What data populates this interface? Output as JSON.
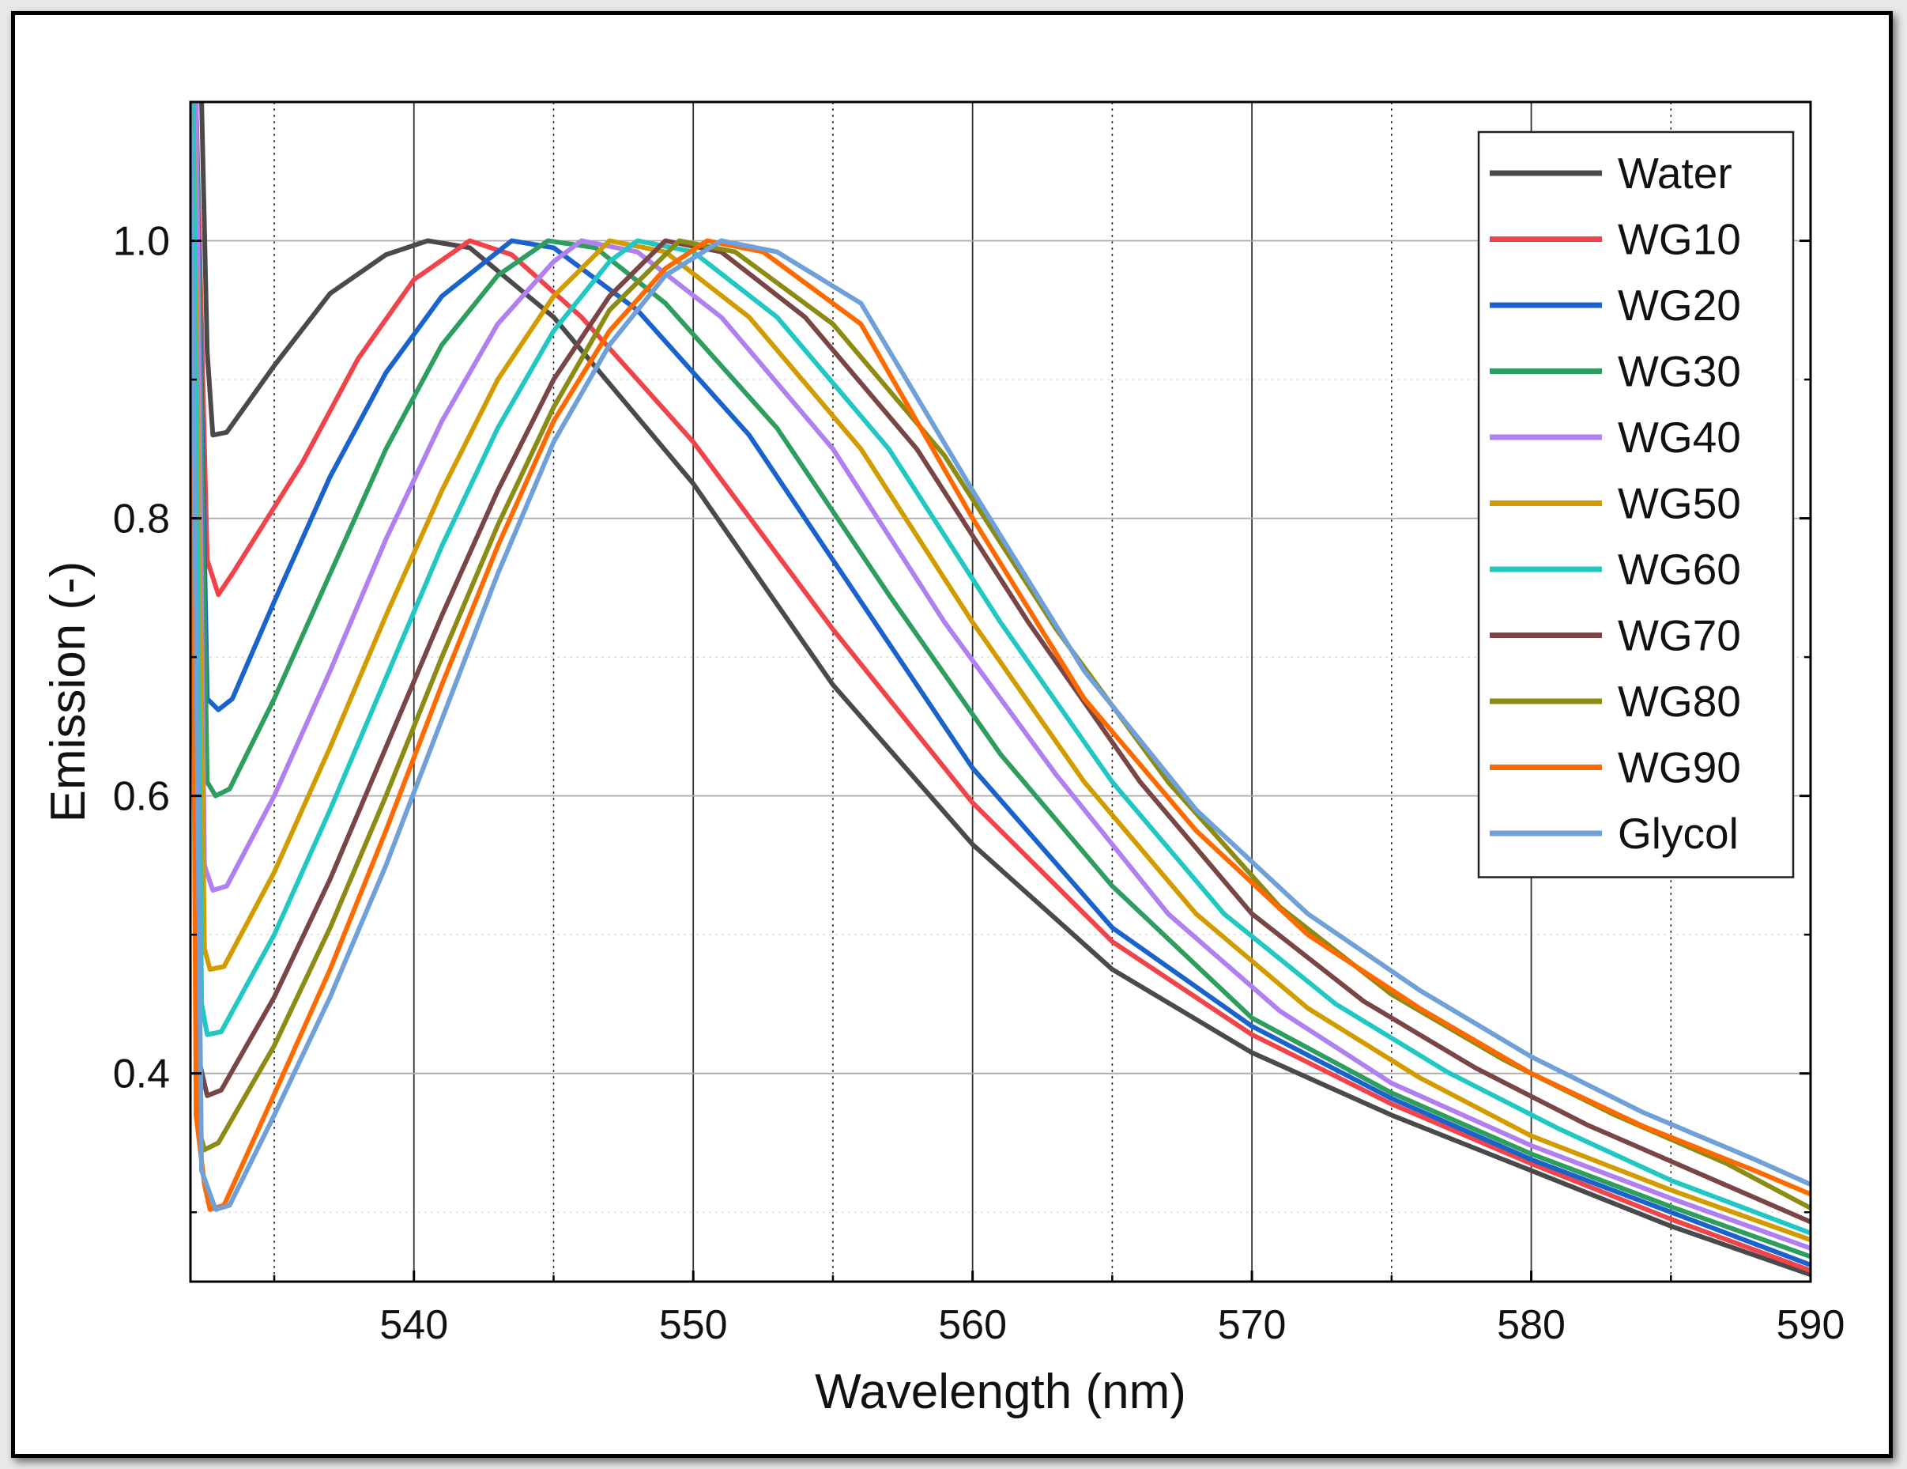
{
  "chart_data": {
    "type": "line",
    "title": "",
    "xlabel": "Wavelength (nm)",
    "ylabel": "Emission (-)",
    "xlim": [
      532,
      590
    ],
    "ylim": [
      0.25,
      1.1
    ],
    "xticks": [
      540,
      550,
      560,
      570,
      580,
      590
    ],
    "xtick_labels": [
      "540",
      "550",
      "560",
      "570",
      "580",
      "590"
    ],
    "yticks": [
      0.4,
      0.6,
      0.8,
      1.0
    ],
    "ytick_labels": [
      "0.4",
      "0.6",
      "0.8",
      "1.0"
    ],
    "minor_xticks": [
      535,
      545,
      555,
      565,
      575,
      585
    ],
    "minor_yticks": [
      0.3,
      0.5,
      0.7,
      0.9
    ],
    "grid": true,
    "legend_position": "top-right",
    "series": [
      {
        "name": "Water",
        "color": "#4a4a4a",
        "min_x": 532.8,
        "min_y": 0.86,
        "peak_x": 540.5,
        "peak_y": 1.0,
        "points": [
          [
            532.4,
            1.1
          ],
          [
            532.6,
            0.92
          ],
          [
            532.8,
            0.86
          ],
          [
            533.3,
            0.862
          ],
          [
            535,
            0.91
          ],
          [
            537,
            0.962
          ],
          [
            539,
            0.99
          ],
          [
            540.5,
            1.0
          ],
          [
            542,
            0.995
          ],
          [
            545,
            0.945
          ],
          [
            550,
            0.825
          ],
          [
            555,
            0.68
          ],
          [
            560,
            0.565
          ],
          [
            565,
            0.475
          ],
          [
            570,
            0.415
          ],
          [
            575,
            0.37
          ],
          [
            580,
            0.33
          ],
          [
            585,
            0.29
          ],
          [
            590,
            0.255
          ]
        ]
      },
      {
        "name": "WG10",
        "color": "#f0434a",
        "min_x": 533.0,
        "min_y": 0.745,
        "peak_x": 542.0,
        "peak_y": 1.0,
        "points": [
          [
            532.2,
            1.1
          ],
          [
            532.6,
            0.77
          ],
          [
            533.0,
            0.745
          ],
          [
            533.5,
            0.76
          ],
          [
            536,
            0.84
          ],
          [
            538,
            0.915
          ],
          [
            540,
            0.972
          ],
          [
            542,
            1.0
          ],
          [
            543.5,
            0.99
          ],
          [
            546,
            0.945
          ],
          [
            550,
            0.855
          ],
          [
            555,
            0.72
          ],
          [
            560,
            0.595
          ],
          [
            565,
            0.495
          ],
          [
            570,
            0.428
          ],
          [
            575,
            0.378
          ],
          [
            580,
            0.335
          ],
          [
            585,
            0.295
          ],
          [
            590,
            0.258
          ]
        ]
      },
      {
        "name": "WG20",
        "color": "#1a63cc",
        "min_x": 533.0,
        "min_y": 0.662,
        "peak_x": 543.5,
        "peak_y": 1.0,
        "points": [
          [
            532.2,
            1.1
          ],
          [
            532.6,
            0.67
          ],
          [
            533.0,
            0.662
          ],
          [
            533.5,
            0.67
          ],
          [
            535,
            0.74
          ],
          [
            537,
            0.83
          ],
          [
            539,
            0.905
          ],
          [
            541,
            0.96
          ],
          [
            543.5,
            1.0
          ],
          [
            545,
            0.995
          ],
          [
            548,
            0.95
          ],
          [
            552,
            0.86
          ],
          [
            556,
            0.74
          ],
          [
            560,
            0.62
          ],
          [
            565,
            0.505
          ],
          [
            570,
            0.434
          ],
          [
            575,
            0.382
          ],
          [
            580,
            0.338
          ],
          [
            585,
            0.3
          ],
          [
            590,
            0.262
          ]
        ]
      },
      {
        "name": "WG30",
        "color": "#2e9e5e",
        "min_x": 532.9,
        "min_y": 0.6,
        "peak_x": 544.8,
        "peak_y": 1.0,
        "points": [
          [
            532.2,
            1.1
          ],
          [
            532.6,
            0.61
          ],
          [
            532.9,
            0.6
          ],
          [
            533.4,
            0.605
          ],
          [
            535,
            0.67
          ],
          [
            537,
            0.76
          ],
          [
            539,
            0.85
          ],
          [
            541,
            0.925
          ],
          [
            543,
            0.975
          ],
          [
            544.8,
            1.0
          ],
          [
            546.5,
            0.995
          ],
          [
            549,
            0.955
          ],
          [
            553,
            0.865
          ],
          [
            557,
            0.745
          ],
          [
            561,
            0.63
          ],
          [
            565,
            0.535
          ],
          [
            570,
            0.44
          ],
          [
            575,
            0.386
          ],
          [
            580,
            0.342
          ],
          [
            585,
            0.304
          ],
          [
            590,
            0.268
          ]
        ]
      },
      {
        "name": "WG40",
        "color": "#b07ff0",
        "min_x": 532.8,
        "min_y": 0.532,
        "peak_x": 546.0,
        "peak_y": 1.0,
        "points": [
          [
            532.2,
            1.1
          ],
          [
            532.5,
            0.55
          ],
          [
            532.8,
            0.532
          ],
          [
            533.3,
            0.535
          ],
          [
            535,
            0.6
          ],
          [
            537,
            0.69
          ],
          [
            539,
            0.785
          ],
          [
            541,
            0.87
          ],
          [
            543,
            0.94
          ],
          [
            545,
            0.985
          ],
          [
            546,
            1.0
          ],
          [
            548,
            0.992
          ],
          [
            551,
            0.945
          ],
          [
            555,
            0.85
          ],
          [
            559,
            0.725
          ],
          [
            563,
            0.615
          ],
          [
            567,
            0.515
          ],
          [
            571,
            0.445
          ],
          [
            575,
            0.393
          ],
          [
            580,
            0.348
          ],
          [
            585,
            0.31
          ],
          [
            590,
            0.274
          ]
        ]
      },
      {
        "name": "WG50",
        "color": "#d29c00",
        "min_x": 532.7,
        "min_y": 0.475,
        "peak_x": 547.0,
        "peak_y": 1.0,
        "points": [
          [
            532.1,
            1.1
          ],
          [
            532.5,
            0.49
          ],
          [
            532.7,
            0.475
          ],
          [
            533.2,
            0.477
          ],
          [
            535,
            0.545
          ],
          [
            537,
            0.635
          ],
          [
            539,
            0.73
          ],
          [
            541,
            0.82
          ],
          [
            543,
            0.9
          ],
          [
            545,
            0.96
          ],
          [
            547,
            1.0
          ],
          [
            549,
            0.992
          ],
          [
            552,
            0.945
          ],
          [
            556,
            0.85
          ],
          [
            560,
            0.725
          ],
          [
            564,
            0.61
          ],
          [
            568,
            0.515
          ],
          [
            572,
            0.447
          ],
          [
            576,
            0.397
          ],
          [
            580,
            0.355
          ],
          [
            585,
            0.316
          ],
          [
            590,
            0.28
          ]
        ]
      },
      {
        "name": "WG60",
        "color": "#21c8c3",
        "min_x": 532.6,
        "min_y": 0.428,
        "peak_x": 548.0,
        "peak_y": 1.0,
        "points": [
          [
            532.1,
            1.1
          ],
          [
            532.4,
            0.45
          ],
          [
            532.6,
            0.428
          ],
          [
            533.1,
            0.43
          ],
          [
            535,
            0.5
          ],
          [
            537,
            0.59
          ],
          [
            539,
            0.685
          ],
          [
            541,
            0.78
          ],
          [
            543,
            0.865
          ],
          [
            545,
            0.935
          ],
          [
            547,
            0.985
          ],
          [
            548,
            1.0
          ],
          [
            550,
            0.992
          ],
          [
            553,
            0.945
          ],
          [
            557,
            0.85
          ],
          [
            561,
            0.725
          ],
          [
            565,
            0.61
          ],
          [
            569,
            0.515
          ],
          [
            573,
            0.45
          ],
          [
            577,
            0.401
          ],
          [
            581,
            0.36
          ],
          [
            585,
            0.323
          ],
          [
            590,
            0.285
          ]
        ]
      },
      {
        "name": "WG70",
        "color": "#7a4545",
        "min_x": 532.6,
        "min_y": 0.384,
        "peak_x": 549.0,
        "peak_y": 1.0,
        "points": [
          [
            532.0,
            1.1
          ],
          [
            532.3,
            0.41
          ],
          [
            532.6,
            0.384
          ],
          [
            533.1,
            0.388
          ],
          [
            535,
            0.455
          ],
          [
            537,
            0.54
          ],
          [
            539,
            0.635
          ],
          [
            541,
            0.73
          ],
          [
            543,
            0.82
          ],
          [
            545,
            0.9
          ],
          [
            547,
            0.96
          ],
          [
            549,
            1.0
          ],
          [
            551,
            0.992
          ],
          [
            554,
            0.945
          ],
          [
            558,
            0.85
          ],
          [
            562,
            0.725
          ],
          [
            566,
            0.61
          ],
          [
            570,
            0.515
          ],
          [
            574,
            0.452
          ],
          [
            578,
            0.404
          ],
          [
            582,
            0.363
          ],
          [
            586,
            0.328
          ],
          [
            590,
            0.293
          ]
        ]
      },
      {
        "name": "WG80",
        "color": "#8c8c14",
        "min_x": 532.5,
        "min_y": 0.345,
        "peak_x": 549.5,
        "peak_y": 1.0,
        "points": [
          [
            532.0,
            1.1
          ],
          [
            532.3,
            0.36
          ],
          [
            532.5,
            0.345
          ],
          [
            533.0,
            0.35
          ],
          [
            535,
            0.42
          ],
          [
            537,
            0.505
          ],
          [
            539,
            0.6
          ],
          [
            541,
            0.7
          ],
          [
            543,
            0.795
          ],
          [
            545,
            0.88
          ],
          [
            547,
            0.95
          ],
          [
            549.5,
            1.0
          ],
          [
            551.5,
            0.992
          ],
          [
            555,
            0.94
          ],
          [
            559,
            0.845
          ],
          [
            563,
            0.72
          ],
          [
            567,
            0.61
          ],
          [
            571,
            0.52
          ],
          [
            575,
            0.457
          ],
          [
            579,
            0.41
          ],
          [
            583,
            0.37
          ],
          [
            587,
            0.335
          ],
          [
            590,
            0.303
          ]
        ]
      },
      {
        "name": "WG90",
        "color": "#ff6a00",
        "min_x": 532.7,
        "min_y": 0.302,
        "peak_x": 550.5,
        "peak_y": 1.0,
        "points": [
          [
            532.0,
            1.1
          ],
          [
            532.2,
            0.37
          ],
          [
            532.5,
            0.32
          ],
          [
            532.7,
            0.302
          ],
          [
            533.2,
            0.305
          ],
          [
            535,
            0.385
          ],
          [
            537,
            0.475
          ],
          [
            539,
            0.575
          ],
          [
            541,
            0.68
          ],
          [
            543,
            0.78
          ],
          [
            545,
            0.87
          ],
          [
            547,
            0.935
          ],
          [
            549,
            0.98
          ],
          [
            550.5,
            1.0
          ],
          [
            552.5,
            0.992
          ],
          [
            556,
            0.94
          ],
          [
            560,
            0.8
          ],
          [
            564,
            0.67
          ],
          [
            568,
            0.575
          ],
          [
            572,
            0.5
          ],
          [
            576,
            0.447
          ],
          [
            580,
            0.4
          ],
          [
            584,
            0.362
          ],
          [
            588,
            0.33
          ],
          [
            590,
            0.313
          ]
        ]
      },
      {
        "name": "Glycol",
        "color": "#6fa0d8",
        "min_x": 532.9,
        "min_y": 0.302,
        "peak_x": 551.0,
        "peak_y": 1.0,
        "points": [
          [
            532.0,
            1.1
          ],
          [
            532.4,
            0.33
          ],
          [
            532.9,
            0.302
          ],
          [
            533.4,
            0.305
          ],
          [
            535,
            0.37
          ],
          [
            537,
            0.455
          ],
          [
            539,
            0.55
          ],
          [
            541,
            0.655
          ],
          [
            543,
            0.76
          ],
          [
            545,
            0.855
          ],
          [
            547,
            0.925
          ],
          [
            549,
            0.975
          ],
          [
            551,
            1.0
          ],
          [
            553,
            0.992
          ],
          [
            556,
            0.955
          ],
          [
            560,
            0.82
          ],
          [
            564,
            0.69
          ],
          [
            568,
            0.59
          ],
          [
            572,
            0.515
          ],
          [
            576,
            0.46
          ],
          [
            580,
            0.412
          ],
          [
            584,
            0.372
          ],
          [
            588,
            0.338
          ],
          [
            590,
            0.32
          ]
        ]
      }
    ]
  }
}
